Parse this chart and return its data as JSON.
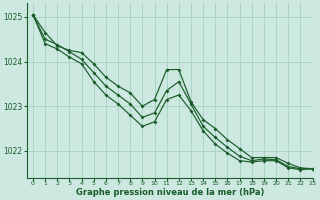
{
  "title": "Graphe pression niveau de la mer (hPa)",
  "background_color": "#cce8e0",
  "grid_color": "#aad4c8",
  "line_color": "#1a5c2a",
  "xlim": [
    -0.5,
    23
  ],
  "ylim": [
    1021.4,
    1025.3
  ],
  "yticks": [
    1022,
    1023,
    1024,
    1025
  ],
  "xticks": [
    0,
    1,
    2,
    3,
    4,
    5,
    6,
    7,
    8,
    9,
    10,
    11,
    12,
    13,
    14,
    15,
    16,
    17,
    18,
    19,
    20,
    21,
    22,
    23
  ],
  "series": [
    [
      1025.05,
      1024.65,
      1024.35,
      1024.25,
      1024.2,
      1023.95,
      1023.65,
      1023.45,
      1023.3,
      1023.0,
      1023.15,
      1023.82,
      1023.82,
      1023.1,
      1022.7,
      1022.5,
      1022.25,
      1022.05,
      1021.85,
      1021.85,
      1021.85,
      1021.72,
      1021.62,
      1021.6
    ],
    [
      1025.05,
      1024.5,
      1024.38,
      1024.22,
      1024.05,
      1023.75,
      1023.45,
      1023.25,
      1023.05,
      1022.75,
      1022.85,
      1023.35,
      1023.55,
      1023.05,
      1022.55,
      1022.3,
      1022.08,
      1021.88,
      1021.78,
      1021.82,
      1021.8,
      1021.65,
      1021.6,
      1021.6
    ],
    [
      1025.05,
      1024.4,
      1024.28,
      1024.1,
      1023.95,
      1023.55,
      1023.25,
      1023.05,
      1022.8,
      1022.55,
      1022.65,
      1023.15,
      1023.25,
      1022.9,
      1022.45,
      1022.15,
      1021.95,
      1021.78,
      1021.75,
      1021.78,
      1021.78,
      1021.62,
      1021.58,
      1021.6
    ]
  ]
}
